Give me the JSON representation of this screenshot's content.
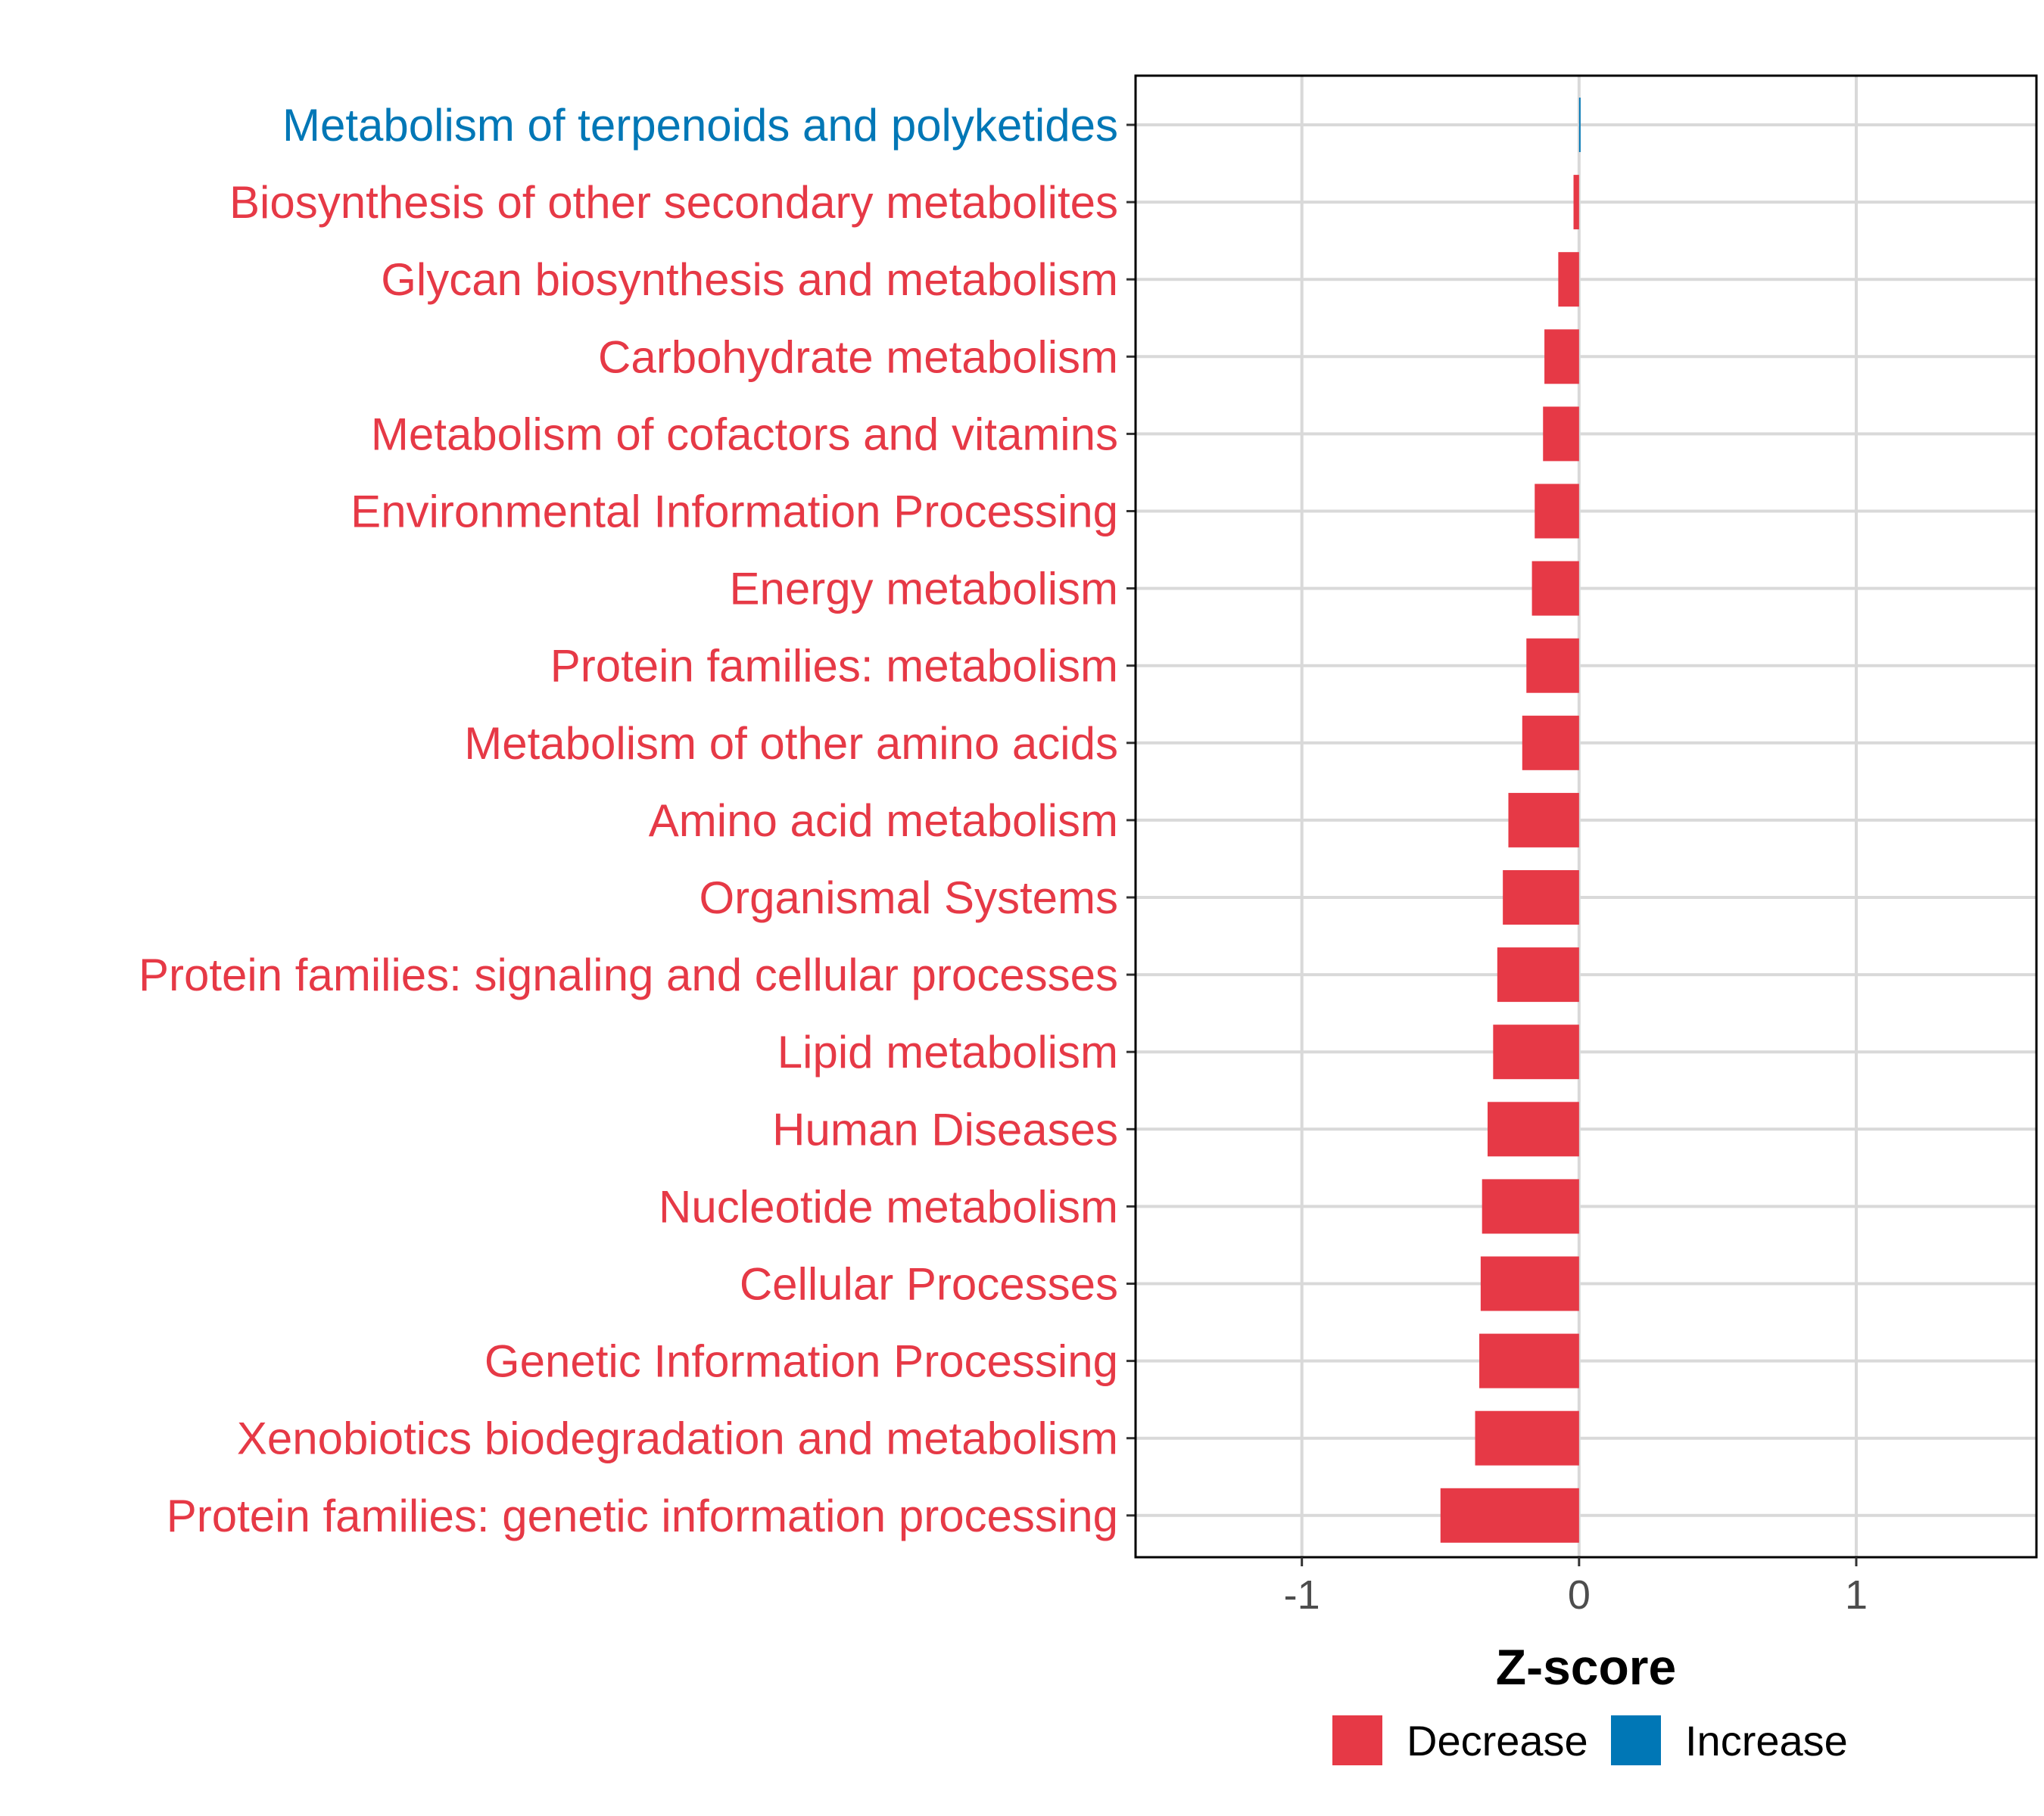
{
  "colors": {
    "decrease": "#e63946",
    "increase": "#0077b6",
    "grid": "#d9d9d9",
    "panel_border": "#000000"
  },
  "chart_data": {
    "type": "bar",
    "orientation": "horizontal",
    "xlabel": "Z-score",
    "xlim": [
      -1.6,
      1.65
    ],
    "xticks": [
      -1,
      0,
      1
    ],
    "xtick_labels": [
      "-1",
      "0",
      "1"
    ],
    "grid": true,
    "legend_position": "bottom",
    "legend": [
      {
        "label": "Decrease",
        "color_key": "decrease"
      },
      {
        "label": "Increase",
        "color_key": "increase"
      }
    ],
    "categories": [
      "Metabolism of terpenoids and polyketides",
      "Biosynthesis of other secondary metabolites",
      "Glycan biosynthesis and metabolism",
      "Carbohydrate metabolism",
      "Metabolism of cofactors and vitamins",
      "Environmental Information Processing",
      "Energy metabolism",
      "Protein families: metabolism",
      "Metabolism of other amino acids",
      "Amino acid metabolism",
      "Organismal Systems",
      "Protein families: signaling and cellular processes",
      "Lipid metabolism",
      "Human Diseases",
      "Nucleotide metabolism",
      "Cellular Processes",
      "Genetic Information Processing",
      "Xenobiotics biodegradation and metabolism",
      "Protein families: genetic information processing"
    ],
    "values": [
      0.005,
      -0.02,
      -0.075,
      -0.125,
      -0.13,
      -0.16,
      -0.17,
      -0.19,
      -0.205,
      -0.255,
      -0.275,
      -0.295,
      -0.31,
      -0.33,
      -0.35,
      -0.355,
      -0.36,
      -0.375,
      -0.5
    ],
    "direction": [
      "increase",
      "decrease",
      "decrease",
      "decrease",
      "decrease",
      "decrease",
      "decrease",
      "decrease",
      "decrease",
      "decrease",
      "decrease",
      "decrease",
      "decrease",
      "decrease",
      "decrease",
      "decrease",
      "decrease",
      "decrease",
      "decrease"
    ]
  }
}
